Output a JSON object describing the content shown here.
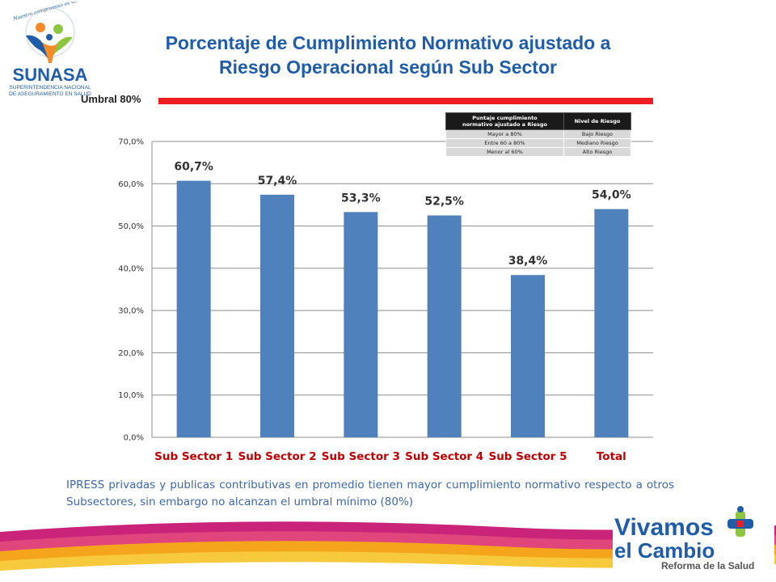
{
  "header": {
    "title_line1": "Porcentaje de Cumplimiento Normativo ajustado a",
    "title_line2": "Riesgo Operacional según Sub Sector"
  },
  "logo_sunasa": {
    "name": "SUNASA",
    "subtitle_line1": "SUPERINTENDENCIA NACIONAL",
    "subtitle_line2": "DE ASEGURAMIENTO EN SALUD",
    "motto": "Nuestro compromiso es velar por tu Salud",
    "color_primary": "#1f5da8",
    "color_orange": "#f28c28",
    "color_green": "#8dc63f"
  },
  "threshold": {
    "label": "Umbral 80%",
    "color": "#ee1d23"
  },
  "risk_table": {
    "header_col1_line1": "Puntaje cumplimiento",
    "header_col1_line2": "normativo ajustado a Riesgo",
    "header_col2": "Nivel de Riesgo",
    "rows": [
      {
        "range": "Mayor a 80%",
        "level": "Bajo Riesgo"
      },
      {
        "range": "Entre 60 a 80%",
        "level": "Mediano Riesgo"
      },
      {
        "range": "Menor al 60%",
        "level": "Alto Riesgo"
      }
    ]
  },
  "chart_data": {
    "type": "bar",
    "categories": [
      "Sub Sector 1",
      "Sub Sector 2",
      "Sub Sector 3",
      "Sub Sector 4",
      "Sub Sector 5",
      "Total"
    ],
    "values": [
      60.7,
      57.4,
      53.3,
      52.5,
      38.4,
      54.0
    ],
    "data_labels": [
      "60,7%",
      "57,4%",
      "53,3%",
      "52,5%",
      "38,4%",
      "54,0%"
    ],
    "y_ticks": [
      0,
      10,
      20,
      30,
      40,
      50,
      60,
      70
    ],
    "y_tick_labels": [
      "0,0%",
      "10,0%",
      "20,0%",
      "30,0%",
      "40,0%",
      "50,0%",
      "60,0%",
      "70,0%"
    ],
    "ylim": [
      0,
      70
    ],
    "grid": true,
    "legend": "none",
    "bar_color": "#4f81bd",
    "category_label_color": "#c00000"
  },
  "note": {
    "text": "IPRESS privadas y publicas contributivas en promedio tienen mayor cumplimiento normativo respecto a otros Subsectores, sin embargo no alcanzan el umbral mínimo (80%)"
  },
  "logo_vivamos": {
    "line1": "Vivamos",
    "line2": "el Cambio",
    "tagline": "Reforma de la Salud",
    "color_blue": "#1f5da8",
    "color_green": "#8dc63f",
    "color_red": "#ee1d23"
  }
}
